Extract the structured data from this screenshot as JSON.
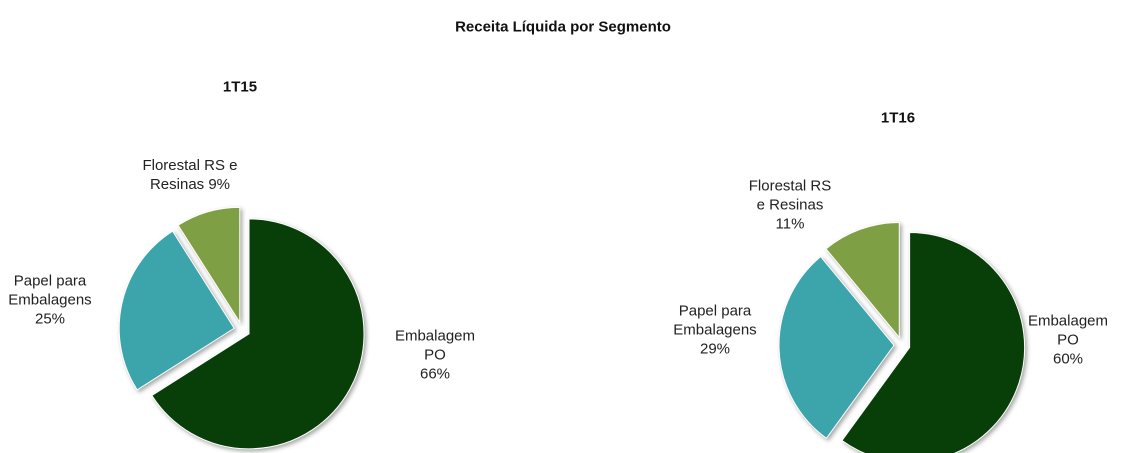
{
  "title": "Receita Líquida por Segmento",
  "chart_data": [
    {
      "type": "pie",
      "title": "1T15",
      "categories": [
        "Embalagem PO",
        "Papel para Embalagens",
        "Florestal RS e Resinas"
      ],
      "values": [
        66,
        25,
        9
      ],
      "value_labels": [
        "66%",
        "25%",
        "9%"
      ],
      "colors": [
        "#083f08",
        "#3ba5ab",
        "#7f9f45"
      ]
    },
    {
      "type": "pie",
      "title": "1T16",
      "categories": [
        "Embalagem PO",
        "Papel para Embalagens",
        "Florestal RS e Resinas"
      ],
      "values": [
        60,
        29,
        11
      ],
      "value_labels": [
        "60%",
        "29%",
        "11%"
      ],
      "colors": [
        "#083f08",
        "#3ba5ab",
        "#7f9f45"
      ]
    }
  ]
}
